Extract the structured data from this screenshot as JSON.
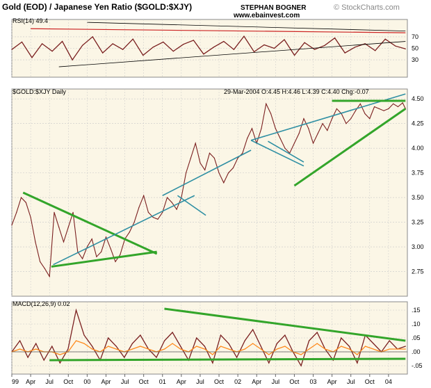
{
  "header": {
    "title": "Gold (EOD) / Japanese Yen Ratio ($GOLD:$XJY)",
    "author": "STEPHAN BOGNER",
    "website": "www.ebainvest.com",
    "watermark": "© StockCharts.com"
  },
  "colors": {
    "panel_bg": "#fbf6e6",
    "price_line": "#7a1f1f",
    "grid": "#c8c8c8",
    "trend_green": "#33a52a",
    "channel_teal": "#2e8fa3",
    "rsi_red": "#cc2222",
    "macd_signal": "#ff8a1c",
    "macd_line": "#7a1f1f"
  },
  "chart_data": [
    {
      "panel": "rsi",
      "type": "line",
      "label": "RSI(14) 49.4",
      "ylim": [
        0,
        100
      ],
      "y_ticks": [
        "70",
        "50",
        "30"
      ],
      "y_tick_values": [
        70,
        50,
        30
      ],
      "series": [
        {
          "values": [
            48,
            61,
            34,
            58,
            45,
            62,
            30,
            55,
            70,
            42,
            58,
            48,
            66,
            38,
            52,
            61,
            45,
            57,
            64,
            40,
            52,
            62,
            48,
            71,
            44,
            56,
            50,
            65,
            38,
            60,
            48,
            55,
            68,
            42,
            52,
            58,
            46,
            66,
            54,
            49
          ]
        }
      ],
      "grid": true
    },
    {
      "panel": "price",
      "type": "line",
      "label": "$GOLD:$XJY Daily",
      "quote": "29-Mar-2004 O:4.45 H:4.46 L:4.39 C:4.40 Chg:-0.07",
      "x_ticks": [
        "99",
        "Apr",
        "Jul",
        "Oct",
        "00",
        "Apr",
        "Jul",
        "Oct",
        "01",
        "Apr",
        "Jul",
        "Oct",
        "02",
        "Apr",
        "Jul",
        "Oct",
        "03",
        "Apr",
        "Jul",
        "Oct",
        "04"
      ],
      "y_ticks": [
        "4.50",
        "4.25",
        "4.00",
        "3.75",
        "3.50",
        "3.25",
        "3.00",
        "2.75"
      ],
      "y_tick_values": [
        4.5,
        4.25,
        4.0,
        3.75,
        3.5,
        3.25,
        3.0,
        2.75
      ],
      "ylim": [
        2.5,
        4.6
      ],
      "series": [
        {
          "x": [
            0,
            0.25,
            0.5,
            0.75,
            1.0,
            1.25,
            1.5,
            1.75,
            2.0,
            2.25,
            2.5,
            2.75,
            3.0,
            3.25,
            3.5,
            3.75,
            4.0,
            4.25,
            4.5,
            4.75,
            5.0,
            5.25,
            5.5,
            5.75,
            6.0,
            6.25,
            6.5,
            6.75,
            7.0,
            7.25,
            7.5,
            7.75,
            8.0,
            8.25,
            8.5,
            8.75,
            9.0,
            9.25,
            9.5,
            9.75,
            10.0,
            10.25,
            10.5,
            10.75,
            11.0,
            11.25,
            11.5,
            11.75,
            12.0,
            12.25,
            12.5,
            12.75,
            13.0,
            13.25,
            13.5,
            13.75,
            14.0,
            14.25,
            14.5,
            14.75,
            15.0,
            15.25,
            15.5,
            15.75,
            16.0,
            16.25,
            16.5,
            16.75,
            17.0,
            17.25,
            17.5,
            17.75,
            18.0,
            18.25,
            18.5,
            18.75,
            19.0,
            19.25,
            19.5,
            19.75,
            20.0,
            20.25,
            20.5,
            20.75,
            20.9
          ],
          "values": [
            3.22,
            3.35,
            3.5,
            3.45,
            3.3,
            3.05,
            2.85,
            2.78,
            2.7,
            3.35,
            3.2,
            3.05,
            3.2,
            3.35,
            2.95,
            2.88,
            3.0,
            3.08,
            2.9,
            2.95,
            3.1,
            2.98,
            2.85,
            2.92,
            3.08,
            3.15,
            3.25,
            3.4,
            3.52,
            3.35,
            3.3,
            3.28,
            3.35,
            3.5,
            3.45,
            3.38,
            3.5,
            3.75,
            3.9,
            4.05,
            3.85,
            3.78,
            3.95,
            3.9,
            3.75,
            3.65,
            3.75,
            3.8,
            3.9,
            3.95,
            4.1,
            4.2,
            4.05,
            4.2,
            4.45,
            4.35,
            4.2,
            4.1,
            4.0,
            3.95,
            4.05,
            4.15,
            4.3,
            4.2,
            4.05,
            4.15,
            4.25,
            4.18,
            4.3,
            4.4,
            4.35,
            4.25,
            4.3,
            4.38,
            4.45,
            4.35,
            4.3,
            4.42,
            4.4,
            4.38,
            4.4,
            4.45,
            4.42,
            4.46,
            4.4
          ]
        }
      ],
      "trendlines": [
        {
          "color": "green",
          "from": [
            0.6,
            3.55
          ],
          "to": [
            7.7,
            2.93
          ]
        },
        {
          "color": "green",
          "from": [
            2.1,
            2.8
          ],
          "to": [
            7.7,
            2.95
          ]
        },
        {
          "color": "teal",
          "from": [
            2.2,
            2.82
          ],
          "to": [
            9.7,
            3.52
          ]
        },
        {
          "color": "teal",
          "from": [
            8.0,
            3.52
          ],
          "to": [
            12.7,
            3.98
          ]
        },
        {
          "color": "teal",
          "from": [
            10.3,
            3.32
          ],
          "to": [
            8.8,
            3.52
          ]
        },
        {
          "color": "teal",
          "from": [
            12.7,
            4.08
          ],
          "to": [
            20.9,
            4.55
          ]
        },
        {
          "color": "teal",
          "from": [
            12.7,
            4.08
          ],
          "to": [
            15.5,
            3.82
          ]
        },
        {
          "color": "teal",
          "from": [
            13.6,
            4.07
          ],
          "to": [
            15.5,
            3.86
          ]
        },
        {
          "color": "green",
          "from": [
            15.0,
            3.62
          ],
          "to": [
            20.9,
            4.4
          ]
        },
        {
          "color": "green",
          "from": [
            17.0,
            4.48
          ],
          "to": [
            20.9,
            4.48
          ]
        }
      ],
      "grid": true
    },
    {
      "panel": "macd",
      "type": "line",
      "label": "MACD(12,26,9) 0.02",
      "y_ticks": [
        ".15",
        ".10",
        ".05",
        ".00",
        "-.05"
      ],
      "y_tick_values": [
        0.15,
        0.1,
        0.05,
        0.0,
        -0.05
      ],
      "ylim": [
        -0.08,
        0.18
      ],
      "series": [
        {
          "values": [
            0.0,
            0.04,
            -0.02,
            0.03,
            -0.03,
            0.02,
            -0.04,
            0.01,
            0.15,
            0.06,
            0.02,
            -0.03,
            0.05,
            0.02,
            -0.02,
            0.03,
            0.06,
            0.01,
            -0.02,
            0.04,
            0.07,
            0.02,
            -0.03,
            0.05,
            0.02,
            -0.04,
            0.06,
            0.03,
            -0.02,
            0.04,
            0.08,
            0.02,
            -0.04,
            0.03,
            0.06,
            0.0,
            -0.05,
            0.04,
            0.07,
            0.01,
            -0.03,
            0.05,
            0.02,
            -0.04,
            0.06,
            0.03,
            0.0,
            0.04,
            0.01,
            0.02
          ]
        },
        {
          "values": [
            0.0,
            0.01,
            0.0,
            0.01,
            0.0,
            0.0,
            -0.01,
            0.0,
            0.04,
            0.03,
            0.01,
            0.0,
            0.02,
            0.01,
            0.0,
            0.01,
            0.02,
            0.01,
            0.0,
            0.01,
            0.03,
            0.01,
            0.0,
            0.02,
            0.01,
            -0.01,
            0.02,
            0.01,
            0.0,
            0.01,
            0.03,
            0.01,
            -0.01,
            0.01,
            0.02,
            0.0,
            -0.01,
            0.01,
            0.03,
            0.01,
            0.0,
            0.02,
            0.01,
            -0.01,
            0.02,
            0.01,
            0.0,
            0.01,
            0.01,
            0.01
          ]
        }
      ],
      "trendlines": [
        {
          "color": "green",
          "from": [
            8.1,
            0.155
          ],
          "to": [
            20.9,
            0.04
          ]
        },
        {
          "color": "green",
          "from": [
            2.0,
            -0.03
          ],
          "to": [
            20.9,
            -0.025
          ]
        }
      ],
      "grid": true
    }
  ]
}
